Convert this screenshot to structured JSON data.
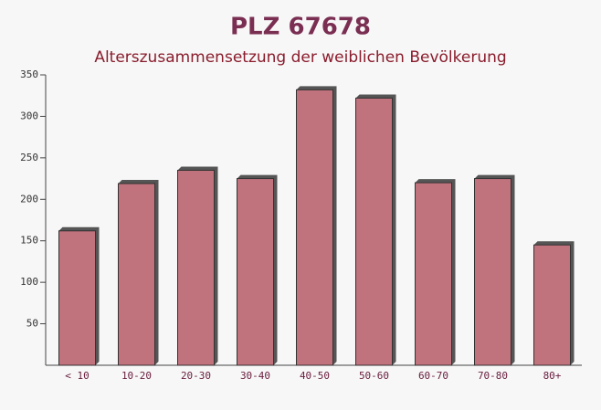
{
  "chart_data": {
    "type": "bar",
    "title": "PLZ 67678",
    "subtitle": "Alterszusammensetzung der weiblichen Bevölkerung",
    "categories": [
      "< 10",
      "10-20",
      "20-30",
      "30-40",
      "40-50",
      "50-60",
      "60-70",
      "70-80",
      "80+"
    ],
    "values": [
      162,
      219,
      235,
      225,
      332,
      322,
      220,
      225,
      145
    ],
    "color": "#b9636f",
    "ylim": [
      0,
      350
    ],
    "yticks": [
      50,
      100,
      150,
      200,
      250,
      300,
      350
    ]
  }
}
